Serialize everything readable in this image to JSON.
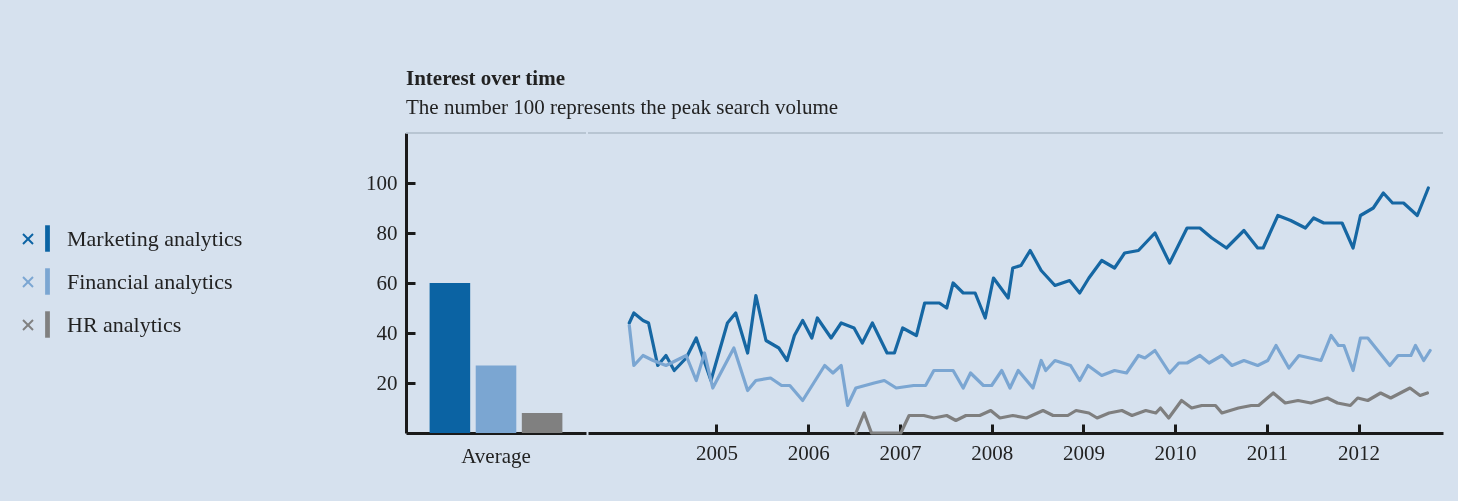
{
  "chart_data": [
    {
      "type": "bar",
      "title": "Interest over time",
      "subtitle": "The number 100 represents the peak search volume",
      "categories": [
        "Average"
      ],
      "ylim": [
        0,
        120
      ],
      "yticks": [
        20,
        40,
        60,
        80,
        100
      ],
      "legend": "left",
      "series": [
        {
          "name": "Marketing analytics",
          "color": "#0b63a3",
          "values": [
            60
          ]
        },
        {
          "name": "Financial analytics",
          "color": "#7ba6d2",
          "values": [
            27
          ]
        },
        {
          "name": "HR analytics",
          "color": "#808080",
          "values": [
            8
          ]
        }
      ]
    },
    {
      "type": "line",
      "xlim": [
        2003.6,
        2012.92
      ],
      "xticks": [
        2005,
        2006,
        2007,
        2008,
        2009,
        2010,
        2011,
        2012
      ],
      "ylim": [
        0,
        120
      ],
      "tick_labels": "x",
      "legend": "left",
      "series": [
        {
          "name": "Marketing analytics",
          "color": "#1667a3",
          "x": [
            2004.05,
            2004.1,
            2004.2,
            2004.26,
            2004.36,
            2004.45,
            2004.54,
            2004.67,
            2004.78,
            2004.94,
            2005.12,
            2005.21,
            2005.34,
            2005.43,
            2005.54,
            2005.68,
            2005.77,
            2005.85,
            2005.94,
            2006.04,
            2006.1,
            2006.25,
            2006.36,
            2006.5,
            2006.59,
            2006.7,
            2006.86,
            2006.94,
            2007.03,
            2007.18,
            2007.27,
            2007.43,
            2007.51,
            2007.58,
            2007.69,
            2007.82,
            2007.93,
            2008.02,
            2008.18,
            2008.23,
            2008.32,
            2008.42,
            2008.54,
            2008.69,
            2008.85,
            2008.96,
            2009.06,
            2009.2,
            2009.34,
            2009.45,
            2009.6,
            2009.78,
            2009.94,
            2010.13,
            2010.27,
            2010.4,
            2010.56,
            2010.75,
            2010.9,
            2010.96,
            2011.12,
            2011.26,
            2011.42,
            2011.51,
            2011.62,
            2011.82,
            2011.94,
            2012.02,
            2012.16,
            2012.27,
            2012.37,
            2012.49,
            2012.64,
            2012.76
          ],
          "values": [
            44,
            48,
            45,
            44,
            27,
            31,
            25,
            30,
            38,
            21,
            44,
            48,
            32,
            55,
            37,
            34,
            29,
            39,
            45,
            38,
            46,
            38,
            44,
            42,
            36,
            44,
            32,
            32,
            42,
            39,
            52,
            52,
            50,
            60,
            56,
            56,
            46,
            62,
            54,
            66,
            67,
            73,
            65,
            59,
            61,
            56,
            62,
            69,
            66,
            72,
            73,
            80,
            68,
            82,
            82,
            78,
            74,
            81,
            74,
            74,
            87,
            85,
            82,
            86,
            84,
            84,
            74,
            87,
            90,
            96,
            92,
            92,
            87,
            98
          ]
        },
        {
          "name": "Financial analytics",
          "color": "#7ba6d2",
          "x": [
            2004.05,
            2004.1,
            2004.2,
            2004.31,
            2004.45,
            2004.67,
            2004.78,
            2004.87,
            2004.96,
            2005.19,
            2005.34,
            2005.43,
            2005.59,
            2005.71,
            2005.8,
            2005.94,
            2006.18,
            2006.27,
            2006.36,
            2006.43,
            2006.52,
            2006.72,
            2006.83,
            2006.96,
            2007.15,
            2007.28,
            2007.37,
            2007.58,
            2007.69,
            2007.77,
            2007.91,
            2008.0,
            2008.11,
            2008.2,
            2008.29,
            2008.45,
            2008.54,
            2008.59,
            2008.69,
            2008.86,
            2008.96,
            2009.05,
            2009.2,
            2009.34,
            2009.47,
            2009.6,
            2009.67,
            2009.78,
            2009.94,
            2010.04,
            2010.13,
            2010.27,
            2010.37,
            2010.51,
            2010.62,
            2010.75,
            2010.9,
            2011.01,
            2011.1,
            2011.24,
            2011.35,
            2011.59,
            2011.7,
            2011.78,
            2011.84,
            2011.94,
            2012.02,
            2012.1,
            2012.34,
            2012.43,
            2012.57,
            2012.62,
            2012.71,
            2012.78
          ],
          "values": [
            43,
            27,
            31,
            29,
            27,
            31,
            21,
            32,
            18,
            34,
            17,
            21,
            22,
            19,
            19,
            13,
            27,
            24,
            27,
            11,
            18,
            20,
            21,
            18,
            19,
            19,
            25,
            25,
            18,
            24,
            19,
            19,
            25,
            18,
            25,
            18,
            29,
            25,
            29,
            27,
            21,
            27,
            23,
            25,
            24,
            31,
            30,
            33,
            24,
            28,
            28,
            31,
            28,
            31,
            27,
            29,
            27,
            29,
            35,
            26,
            31,
            29,
            39,
            35,
            35,
            25,
            38,
            38,
            27,
            31,
            31,
            35,
            29,
            33
          ]
        },
        {
          "name": "HR analytics",
          "color": "#7f7f7f",
          "x": [
            2006.52,
            2006.61,
            2006.69,
            2007.01,
            2007.1,
            2007.26,
            2007.37,
            2007.51,
            2007.61,
            2007.72,
            2007.87,
            2007.99,
            2008.09,
            2008.23,
            2008.38,
            2008.56,
            2008.67,
            2008.83,
            2008.92,
            2009.06,
            2009.15,
            2009.28,
            2009.42,
            2009.53,
            2009.68,
            2009.79,
            2009.84,
            2009.93,
            2010.07,
            2010.18,
            2010.29,
            2010.44,
            2010.51,
            2010.69,
            2010.83,
            2010.91,
            2011.07,
            2011.2,
            2011.34,
            2011.48,
            2011.66,
            2011.77,
            2011.91,
            2011.99,
            2012.1,
            2012.24,
            2012.35,
            2012.56,
            2012.67,
            2012.75
          ],
          "values": [
            0,
            8,
            0,
            0,
            7,
            7,
            6,
            7,
            5,
            7,
            7,
            9,
            6,
            7,
            6,
            9,
            7,
            7,
            9,
            8,
            6,
            8,
            9,
            7,
            9,
            8,
            10,
            6,
            13,
            10,
            11,
            11,
            8,
            10,
            11,
            11,
            16,
            12,
            13,
            12,
            14,
            12,
            11,
            14,
            13,
            16,
            14,
            18,
            15,
            16
          ]
        }
      ]
    }
  ]
}
